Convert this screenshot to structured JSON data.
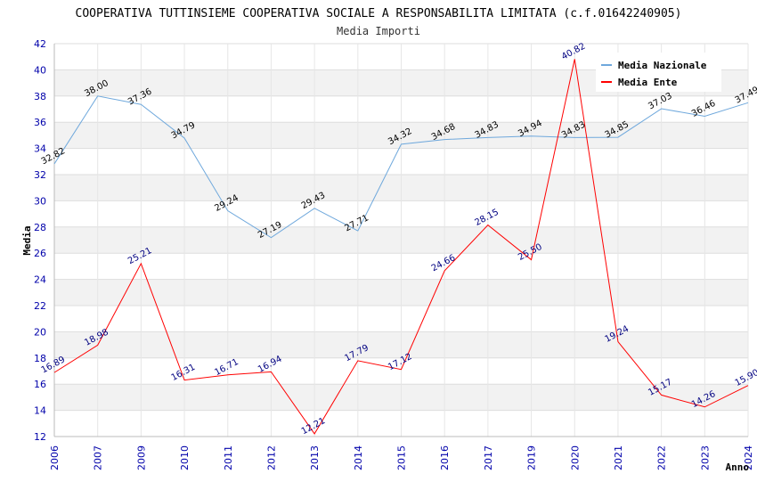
{
  "chart_data": {
    "type": "line",
    "title": "COOPERATIVA TUTTINSIEME COOPERATIVA SOCIALE A RESPONSABILITA LIMITATA (c.f.01642240905)",
    "subtitle": "Media Importi",
    "xlabel": "Anno",
    "ylabel": "Media",
    "ylim": [
      12,
      42
    ],
    "yticks": [
      12,
      14,
      16,
      18,
      20,
      22,
      24,
      26,
      28,
      30,
      32,
      34,
      36,
      38,
      40,
      42
    ],
    "categories": [
      "2006",
      "2007",
      "2009",
      "2010",
      "2011",
      "2012",
      "2013",
      "2014",
      "2015",
      "2016",
      "2017",
      "2019",
      "2020",
      "2021",
      "2022",
      "2023",
      "2024"
    ],
    "legend_position": "top-right",
    "series": [
      {
        "name": "Media Nazionale",
        "color": "#6fa8dc",
        "values": [
          32.82,
          38.0,
          37.36,
          34.79,
          29.24,
          27.19,
          29.43,
          27.71,
          34.32,
          34.68,
          34.83,
          34.94,
          34.83,
          34.85,
          37.03,
          36.46,
          37.49
        ],
        "labels": [
          "32.82",
          "38.00",
          "37.36",
          "34.79",
          "29.24",
          "27.19",
          "29.43",
          "27.71",
          "34.32",
          "34.68",
          "34.83",
          "34.94",
          "34.83",
          "34.85",
          "37.03",
          "36.46",
          "37.49"
        ]
      },
      {
        "name": "Media Ente",
        "color": "#ff0000",
        "values": [
          16.89,
          18.98,
          25.21,
          16.31,
          16.71,
          16.94,
          12.21,
          17.79,
          17.12,
          24.66,
          28.15,
          25.5,
          40.82,
          19.24,
          15.17,
          14.26,
          15.9
        ],
        "labels": [
          "16.89",
          "18.98",
          "25.21",
          "16.31",
          "16.71",
          "16.94",
          "12.21",
          "17.79",
          "17.12",
          "24.66",
          "28.15",
          "25.50",
          "40.82",
          "19.24",
          "15.17",
          "14.26",
          "15.90"
        ]
      }
    ]
  }
}
